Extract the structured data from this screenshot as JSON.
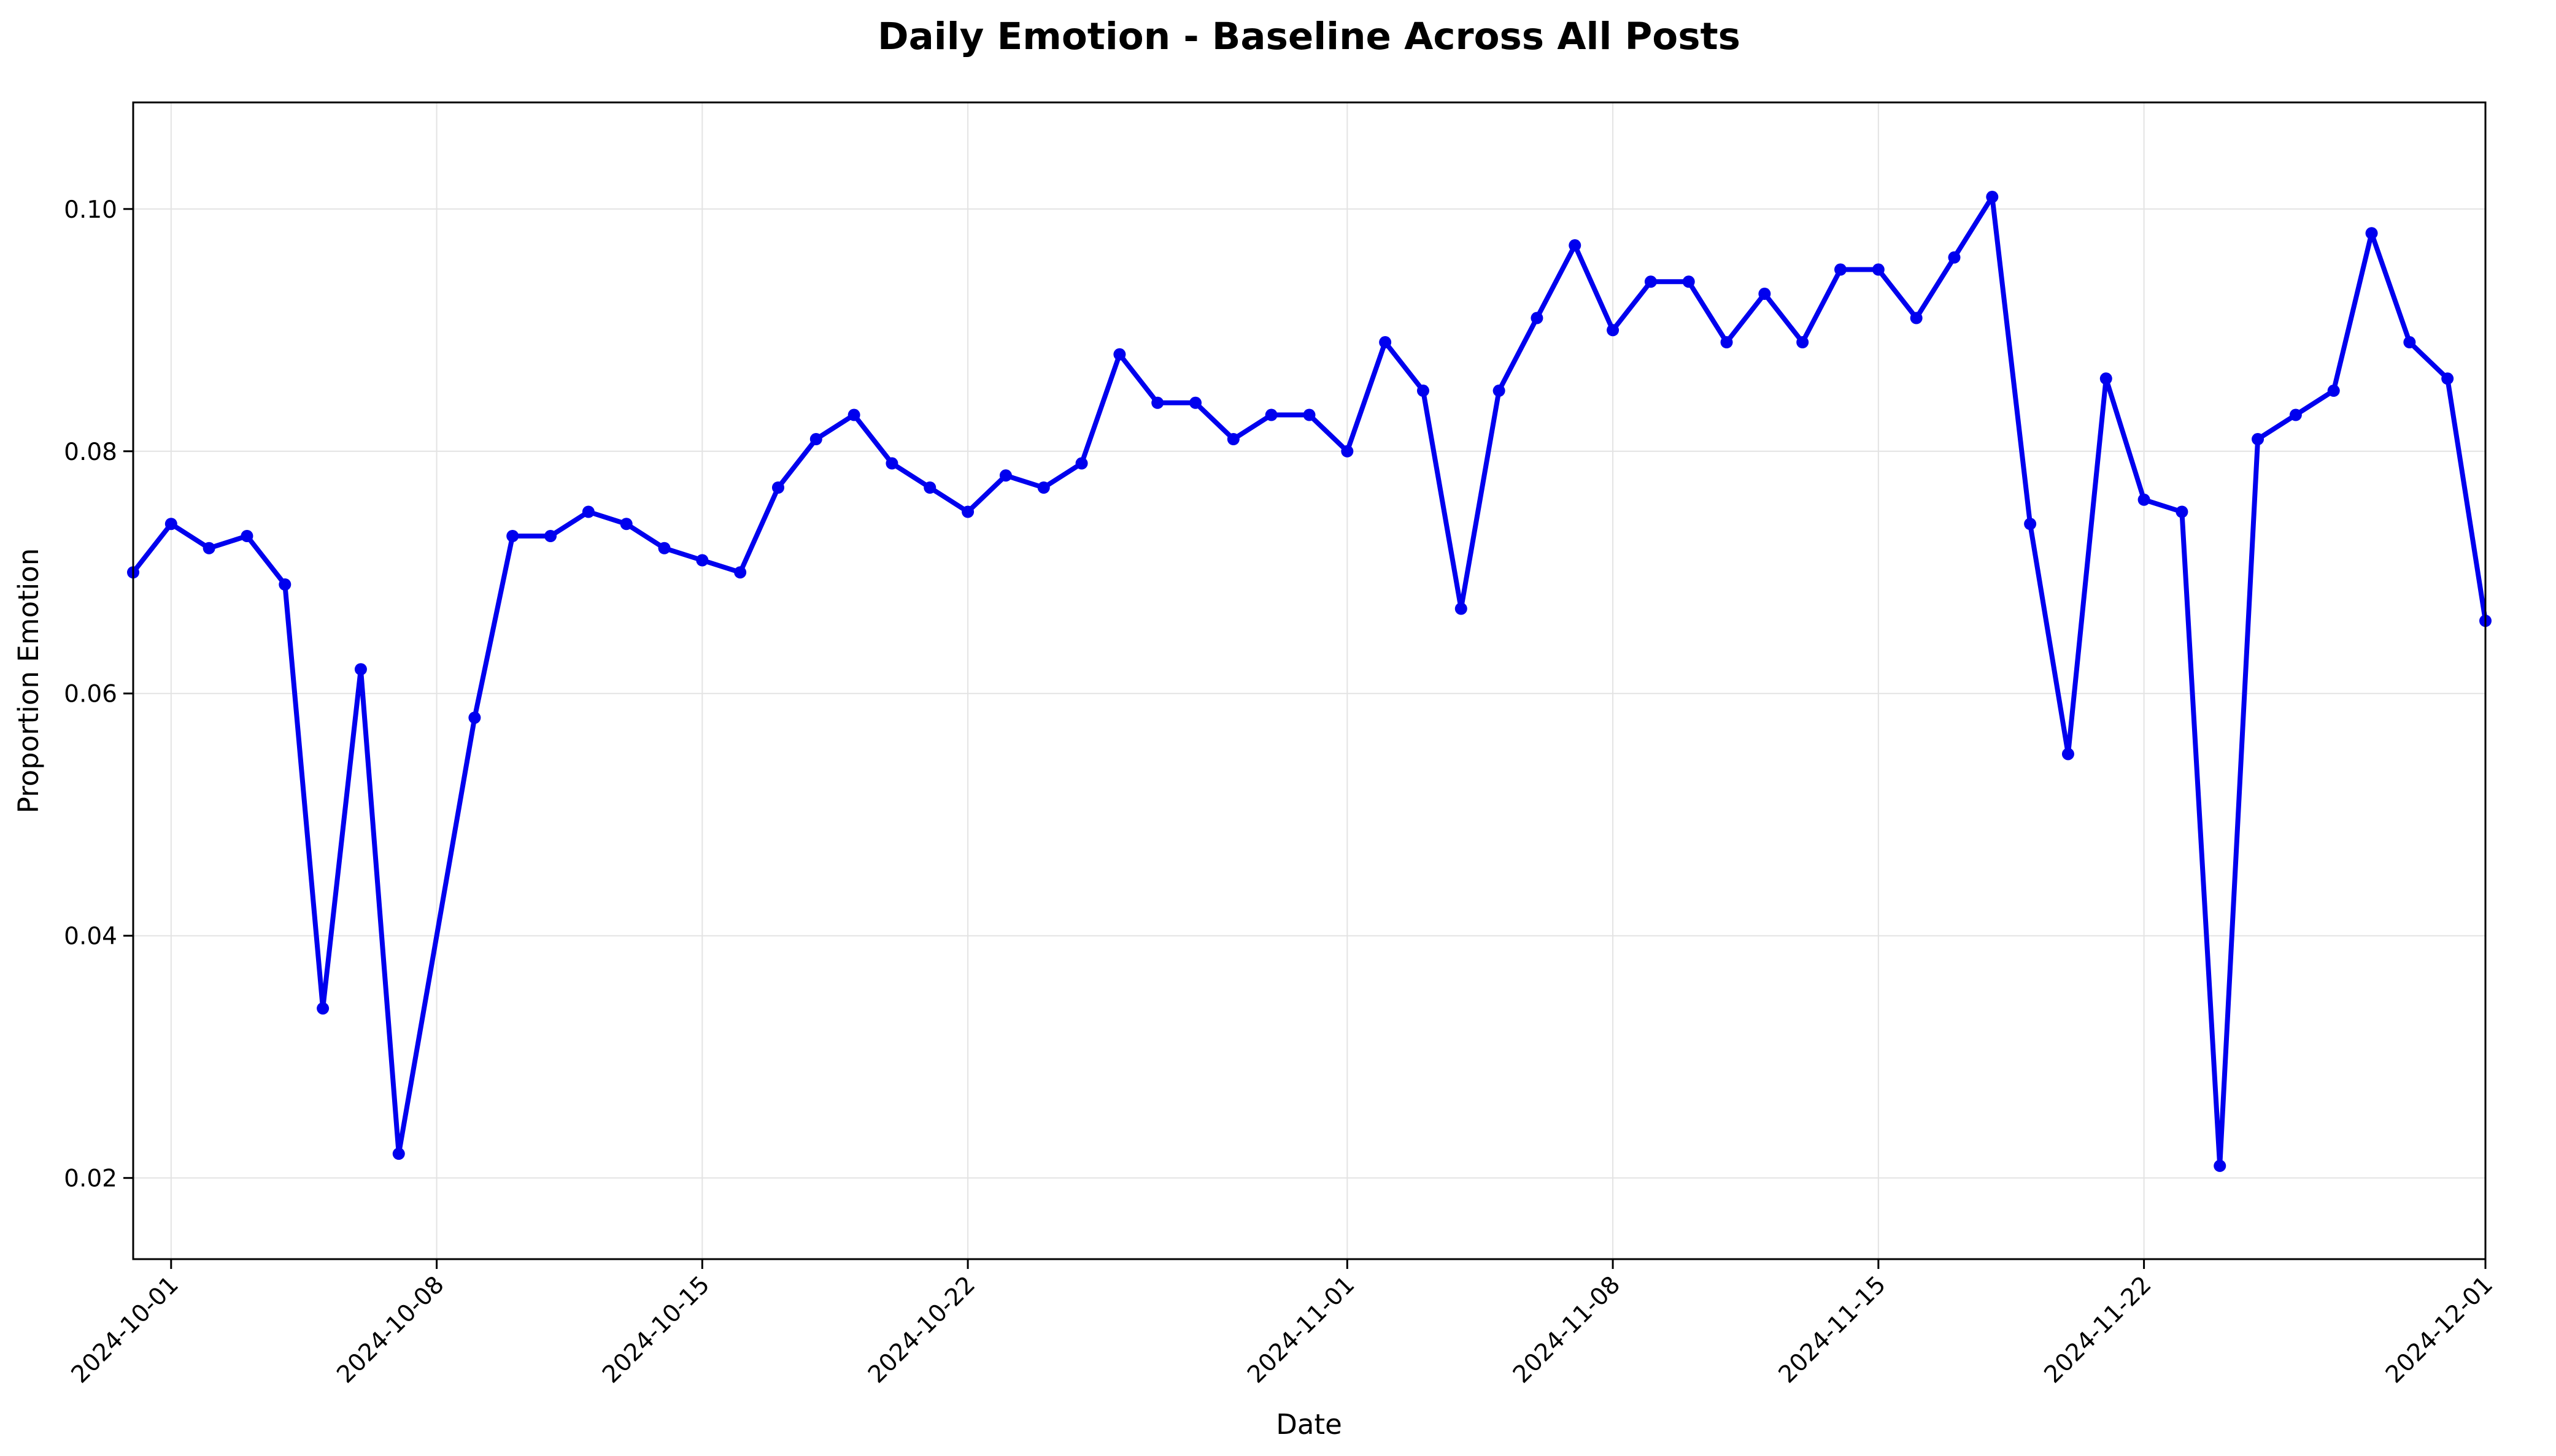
{
  "chart_data": {
    "type": "line",
    "title": "Daily Emotion - Baseline Across All Posts",
    "xlabel": "Date",
    "ylabel": "Proportion Emotion",
    "x_ticks": [
      "2024-10-01",
      "2024-10-08",
      "2024-10-15",
      "2024-10-22",
      "2024-11-01",
      "2024-11-08",
      "2024-11-15",
      "2024-11-22",
      "2024-12-01"
    ],
    "y_ticks": [
      "0.02",
      "0.04",
      "0.06",
      "0.08",
      "0.10"
    ],
    "xlim": [
      "2024-09-30",
      "2024-12-01"
    ],
    "ylim": [
      0.0133,
      0.1088
    ],
    "grid": true,
    "legend": "none",
    "series_color": "#0000ee",
    "series": [
      {
        "x": [
          "2024-09-30",
          "2024-10-01",
          "2024-10-02",
          "2024-10-03",
          "2024-10-04",
          "2024-10-05",
          "2024-10-06",
          "2024-10-07",
          "2024-10-09",
          "2024-10-10",
          "2024-10-11",
          "2024-10-12",
          "2024-10-13",
          "2024-10-14",
          "2024-10-15",
          "2024-10-16",
          "2024-10-17",
          "2024-10-18",
          "2024-10-19",
          "2024-10-20",
          "2024-10-21",
          "2024-10-22",
          "2024-10-23",
          "2024-10-24",
          "2024-10-25",
          "2024-10-26",
          "2024-10-27",
          "2024-10-28",
          "2024-10-29",
          "2024-10-30",
          "2024-10-31",
          "2024-11-01",
          "2024-11-02",
          "2024-11-03",
          "2024-11-04",
          "2024-11-05",
          "2024-11-06",
          "2024-11-07",
          "2024-11-08",
          "2024-11-09",
          "2024-11-10",
          "2024-11-11",
          "2024-11-12",
          "2024-11-13",
          "2024-11-14",
          "2024-11-15",
          "2024-11-16",
          "2024-11-17",
          "2024-11-18",
          "2024-11-19",
          "2024-11-20",
          "2024-11-21",
          "2024-11-22",
          "2024-11-23",
          "2024-11-24",
          "2024-11-25",
          "2024-11-26",
          "2024-11-27",
          "2024-11-28",
          "2024-11-29",
          "2024-11-30",
          "2024-12-01"
        ],
        "values": [
          0.07,
          0.074,
          0.072,
          0.073,
          0.069,
          0.034,
          0.062,
          0.022,
          0.058,
          0.073,
          0.073,
          0.075,
          0.074,
          0.072,
          0.071,
          0.07,
          0.077,
          0.081,
          0.083,
          0.079,
          0.077,
          0.075,
          0.078,
          0.077,
          0.079,
          0.088,
          0.084,
          0.084,
          0.081,
          0.083,
          0.083,
          0.08,
          0.089,
          0.085,
          0.067,
          0.085,
          0.091,
          0.097,
          0.09,
          0.094,
          0.094,
          0.089,
          0.093,
          0.089,
          0.095,
          0.095,
          0.091,
          0.096,
          0.101,
          0.074,
          0.055,
          0.086,
          0.076,
          0.075,
          0.021,
          0.081,
          0.083,
          0.085,
          0.098,
          0.089,
          0.086,
          0.066
        ]
      }
    ]
  }
}
